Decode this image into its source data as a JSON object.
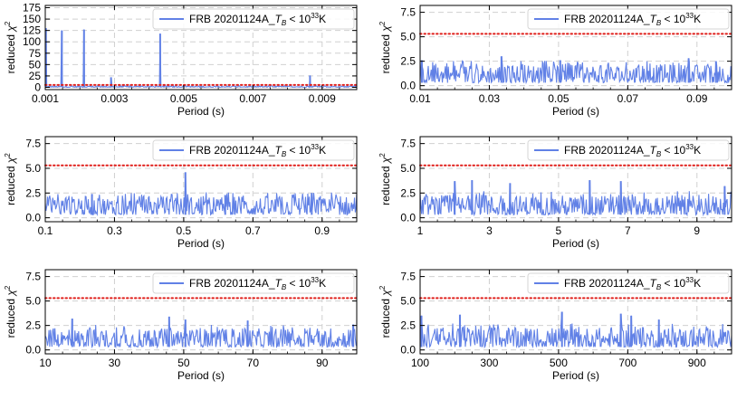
{
  "figure": {
    "description_free": true
  },
  "chart_data": [
    {
      "type": "line",
      "xlabel": "Period (s)",
      "ylabel": "reduced χ²",
      "xlim": [
        0.001,
        0.01
      ],
      "ylim": [
        -5,
        180
      ],
      "xticks": [
        0.001,
        0.003,
        0.005,
        0.007,
        0.009
      ],
      "xtick_labels": [
        "0.001",
        "0.003",
        "0.005",
        "0.007",
        "0.009"
      ],
      "yticks": [
        0,
        25,
        50,
        75,
        100,
        125,
        150,
        175
      ],
      "ytick_labels": [
        "0",
        "25",
        "50",
        "75",
        "100",
        "125",
        "150",
        "175"
      ],
      "threshold": 5.3,
      "grid": true,
      "legend": {
        "label": "FRB 20201124A_T_B < 10³³K",
        "placement": "top-right"
      },
      "series": [
        {
          "name": "FRB 20201124A",
          "baseline": [
            0.2,
            3.0
          ],
          "spikes": [
            {
              "x": 0.00102,
              "y": 130
            },
            {
              "x": 0.00148,
              "y": 125
            },
            {
              "x": 0.00212,
              "y": 127
            },
            {
              "x": 0.0029,
              "y": 22
            },
            {
              "x": 0.00432,
              "y": 118
            },
            {
              "x": 0.00865,
              "y": 26
            }
          ]
        }
      ]
    },
    {
      "type": "line",
      "xlabel": "Period (s)",
      "ylabel": "reduced χ²",
      "xlim": [
        0.01,
        0.1
      ],
      "ylim": [
        -0.4,
        8.2
      ],
      "xticks": [
        0.01,
        0.03,
        0.05,
        0.07,
        0.09
      ],
      "xtick_labels": [
        "0.01",
        "0.03",
        "0.05",
        "0.07",
        "0.09"
      ],
      "yticks": [
        0,
        2.5,
        5,
        7.5
      ],
      "ytick_labels": [
        "0.0",
        "2.5",
        "5.0",
        "7.5"
      ],
      "threshold": 5.3,
      "grid": true,
      "legend": {
        "label": "FRB 20201124A_T_B < 10³³K",
        "placement": "top-right"
      },
      "series": [
        {
          "name": "FRB 20201124A",
          "baseline": [
            0.3,
            2.2
          ],
          "spikes": [
            {
              "x": 0.0105,
              "y": 2.6
            },
            {
              "x": 0.0335,
              "y": 3.0
            },
            {
              "x": 0.0505,
              "y": 2.6
            },
            {
              "x": 0.0876,
              "y": 2.8
            },
            {
              "x": 0.0955,
              "y": 2.5
            }
          ]
        }
      ]
    },
    {
      "type": "line",
      "xlabel": "Period (s)",
      "ylabel": "reduced χ²",
      "xlim": [
        0.1,
        1.0
      ],
      "ylim": [
        -0.4,
        8.2
      ],
      "xticks": [
        0.1,
        0.3,
        0.5,
        0.7,
        0.9
      ],
      "xtick_labels": [
        "0.1",
        "0.3",
        "0.5",
        "0.7",
        "0.9"
      ],
      "yticks": [
        0,
        2.5,
        5,
        7.5
      ],
      "ytick_labels": [
        "0.0",
        "2.5",
        "5.0",
        "7.5"
      ],
      "threshold": 5.3,
      "grid": true,
      "legend": {
        "label": "FRB 20201124A_T_B < 10³³K",
        "placement": "top-right"
      },
      "series": [
        {
          "name": "FRB 20201124A",
          "baseline": [
            0.3,
            2.2
          ],
          "spikes": [
            {
              "x": 0.235,
              "y": 2.4
            },
            {
              "x": 0.505,
              "y": 4.6
            },
            {
              "x": 0.62,
              "y": 2.3
            },
            {
              "x": 0.87,
              "y": 2.5
            }
          ]
        }
      ]
    },
    {
      "type": "line",
      "xlabel": "Period (s)",
      "ylabel": "reduced χ²",
      "xlim": [
        1,
        10
      ],
      "ylim": [
        -0.4,
        8.2
      ],
      "xticks": [
        1,
        3,
        5,
        7,
        9
      ],
      "xtick_labels": [
        "1",
        "3",
        "5",
        "7",
        "9"
      ],
      "yticks": [
        0,
        2.5,
        5,
        7.5
      ],
      "ytick_labels": [
        "0.0",
        "2.5",
        "5.0",
        "7.5"
      ],
      "threshold": 5.3,
      "grid": true,
      "legend": {
        "label": "FRB 20201124A_T_B < 10³³K",
        "placement": "top-right"
      },
      "series": [
        {
          "name": "FRB 20201124A",
          "baseline": [
            0.3,
            2.3
          ],
          "spikes": [
            {
              "x": 2.0,
              "y": 3.7
            },
            {
              "x": 2.5,
              "y": 3.8
            },
            {
              "x": 3.6,
              "y": 3.5
            },
            {
              "x": 5.9,
              "y": 3.8
            },
            {
              "x": 6.8,
              "y": 3.7
            },
            {
              "x": 9.8,
              "y": 3.2
            }
          ]
        }
      ]
    },
    {
      "type": "line",
      "xlabel": "Period (s)",
      "ylabel": "reduced χ²",
      "xlim": [
        10,
        100
      ],
      "ylim": [
        -0.4,
        8.2
      ],
      "xticks": [
        10,
        30,
        50,
        70,
        90
      ],
      "xtick_labels": [
        "10",
        "30",
        "50",
        "70",
        "90"
      ],
      "yticks": [
        0,
        2.5,
        5,
        7.5
      ],
      "ytick_labels": [
        "0.0",
        "2.5",
        "5.0",
        "7.5"
      ],
      "threshold": 5.3,
      "grid": true,
      "legend": {
        "label": "FRB 20201124A_T_B < 10³³K",
        "placement": "top-right"
      },
      "series": [
        {
          "name": "FRB 20201124A",
          "baseline": [
            0.3,
            2.2
          ],
          "spikes": [
            {
              "x": 17.8,
              "y": 3.2
            },
            {
              "x": 45.8,
              "y": 3.4
            },
            {
              "x": 50.5,
              "y": 3.1
            },
            {
              "x": 68.5,
              "y": 3.0
            },
            {
              "x": 99.0,
              "y": 2.6
            }
          ]
        }
      ]
    },
    {
      "type": "line",
      "xlabel": "Period (s)",
      "ylabel": "reduced χ²",
      "xlim": [
        100,
        1000
      ],
      "ylim": [
        -0.4,
        8.2
      ],
      "xticks": [
        100,
        300,
        500,
        700,
        900
      ],
      "xtick_labels": [
        "100",
        "300",
        "500",
        "700",
        "900"
      ],
      "yticks": [
        0,
        2.5,
        5,
        7.5
      ],
      "ytick_labels": [
        "0.0",
        "2.5",
        "5.0",
        "7.5"
      ],
      "threshold": 5.3,
      "grid": true,
      "legend": {
        "label": "FRB 20201124A_T_B < 10³³K",
        "placement": "top-right"
      },
      "series": [
        {
          "name": "FRB 20201124A",
          "baseline": [
            0.3,
            2.3
          ],
          "spikes": [
            {
              "x": 104,
              "y": 3.5
            },
            {
              "x": 215,
              "y": 3.6
            },
            {
              "x": 510,
              "y": 3.9
            },
            {
              "x": 680,
              "y": 3.7
            },
            {
              "x": 710,
              "y": 3.5
            },
            {
              "x": 790,
              "y": 3.1
            }
          ]
        }
      ]
    }
  ],
  "legend_text": {
    "prefix": "FRB 20201124A_",
    "tb": "T",
    "tb_sub": "B",
    "mid": " < 10",
    "exp": "33",
    "suffix": "K"
  },
  "ylabel_text": {
    "base": "reduced ",
    "chi": "χ",
    "exp": "2"
  },
  "colors": {
    "series": "#6181e6",
    "threshold": "#e0201c",
    "grid": "#d0d0d0",
    "axis": "#000000"
  }
}
